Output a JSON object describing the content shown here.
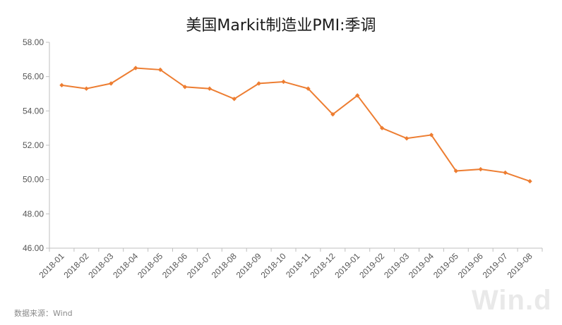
{
  "chart_data": {
    "type": "line",
    "title": "美国Markit制造业PMI:季调",
    "xlabel": "",
    "ylabel": "",
    "ylim": [
      46.0,
      58.0
    ],
    "y_ticks": [
      "46.00",
      "48.00",
      "50.00",
      "52.00",
      "54.00",
      "56.00",
      "58.00"
    ],
    "categories": [
      "2018-01",
      "2018-02",
      "2018-03",
      "2018-04",
      "2018-05",
      "2018-06",
      "2018-07",
      "2018-08",
      "2018-09",
      "2018-10",
      "2018-11",
      "2018-12",
      "2019-01",
      "2019-02",
      "2019-03",
      "2019-04",
      "2019-05",
      "2019-06",
      "2019-07",
      "2019-08"
    ],
    "series": [
      {
        "values": [
          55.5,
          55.3,
          55.6,
          56.5,
          56.4,
          55.4,
          55.3,
          54.7,
          55.6,
          55.7,
          55.3,
          53.8,
          54.9,
          53.0,
          52.4,
          52.6,
          50.5,
          50.6,
          50.4,
          49.9
        ],
        "color": "#ED7D31"
      }
    ],
    "grid": false,
    "legend": "none"
  },
  "source_note": "数据来源：Wind",
  "watermark": "Win.d"
}
